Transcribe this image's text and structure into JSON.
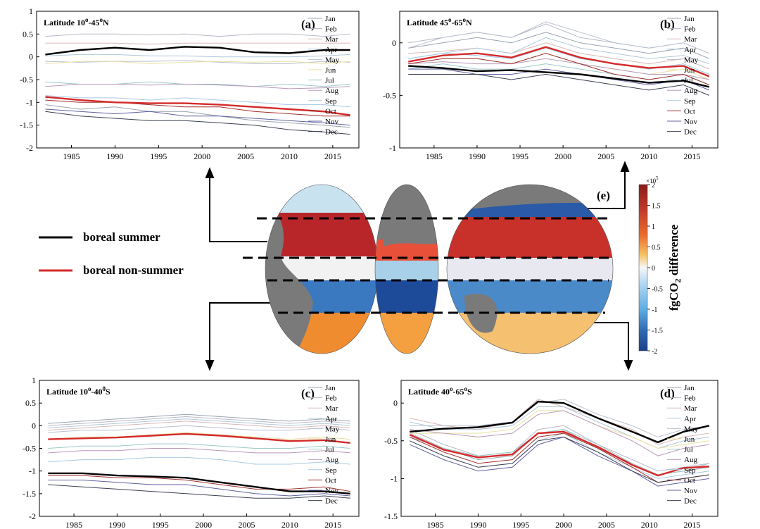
{
  "figure": {
    "legend": {
      "summer_label": "boreal summer",
      "nonsummer_label": "boreal non-summer",
      "summer_color": "#000000",
      "nonsummer_color": "#d42a2a"
    },
    "month_colors": [
      "#9aa3b0",
      "#b8b8c8",
      "#d8b8b8",
      "#b0c8d8",
      "#b8c0d0",
      "#e8e0a0",
      "#9cc8c8",
      "#b89ab8",
      "#a8c8e0",
      "#a03030",
      "#6060a0",
      "#3a4050"
    ],
    "map": {
      "label": "(e)",
      "colorbar": {
        "title_main": "fgCO",
        "title_sub": "2",
        "title_rest": " difference",
        "exponent_base": "×10",
        "exponent_power": "5",
        "ticks": [
          "2",
          "1.5",
          "1",
          "0.5",
          "0",
          "-0.5",
          "-1",
          "-1.5",
          "-2"
        ],
        "colors": [
          "#8b1a1a",
          "#c0392b",
          "#e74c3c",
          "#f39c12",
          "#f5d76e",
          "#f7f7f7",
          "#aed6f1",
          "#5dade2",
          "#2e86c1",
          "#1a3f8b"
        ]
      }
    }
  },
  "chart_data": [
    {
      "type": "line",
      "label": "(a)",
      "title": "Latitude 10°-45°N",
      "title_parts": {
        "pre": "Latitude 10",
        "sup1": "o",
        "mid": "-45",
        "sup2": "o",
        "post": "N"
      },
      "xlim": [
        1981,
        2018
      ],
      "ylim": [
        -2,
        1
      ],
      "xticks": [
        1985,
        1990,
        1995,
        2000,
        2005,
        2010,
        2015
      ],
      "yticks": [
        1,
        0.5,
        0,
        -0.5,
        -1,
        -1.5,
        -2
      ],
      "ytick_labels": [
        "1",
        "0.5",
        "0",
        "-0.5",
        "-1",
        "-1.5",
        "-2"
      ],
      "x": [
        1982,
        1986,
        1990,
        1994,
        1998,
        2002,
        2006,
        2010,
        2014,
        2017
      ],
      "legend": [
        "Jan",
        "Feb",
        "Mar",
        "Apr",
        "May",
        "Jun",
        "Jul",
        "Aug",
        "Sep",
        "Oct",
        "Nov",
        "Dec"
      ],
      "months": [
        [
          -1.05,
          -1.15,
          -1.1,
          -1.2,
          -1.2,
          -1.3,
          -1.4,
          -1.45,
          -1.5,
          -1.55
        ],
        [
          0.45,
          0.5,
          0.5,
          0.48,
          0.5,
          0.45,
          0.5,
          0.5,
          0.45,
          0.5
        ],
        [
          0.3,
          0.3,
          0.3,
          0.28,
          0.3,
          0.3,
          0.3,
          0.3,
          0.3,
          0.3
        ],
        [
          0.02,
          0.05,
          0.05,
          0.02,
          0.02,
          0.0,
          0.0,
          0.0,
          0.02,
          0.05
        ],
        [
          -0.1,
          -0.12,
          -0.1,
          -0.1,
          -0.08,
          -0.12,
          -0.15,
          -0.15,
          -0.1,
          -0.12
        ],
        [
          -0.15,
          -0.1,
          -0.1,
          -0.15,
          -0.12,
          -0.1,
          -0.12,
          -0.1,
          -0.15,
          -0.1
        ],
        [
          -0.55,
          -0.6,
          -0.6,
          -0.55,
          -0.6,
          -0.6,
          -0.65,
          -0.6,
          -0.65,
          -0.6
        ],
        [
          -0.65,
          -0.6,
          -0.6,
          -0.62,
          -0.6,
          -0.62,
          -0.65,
          -0.7,
          -0.68,
          -0.65
        ],
        [
          -0.85,
          -0.9,
          -0.9,
          -0.95,
          -0.9,
          -0.95,
          -1.0,
          -1.05,
          -1.05,
          -1.1
        ],
        [
          -0.95,
          -1.0,
          -1.0,
          -1.05,
          -1.1,
          -1.1,
          -1.2,
          -1.25,
          -1.3,
          -1.3
        ],
        [
          -1.15,
          -1.2,
          -1.25,
          -1.2,
          -1.3,
          -1.3,
          -1.35,
          -1.4,
          -1.45,
          -1.5
        ],
        [
          -1.2,
          -1.3,
          -1.35,
          -1.4,
          -1.4,
          -1.45,
          -1.5,
          -1.6,
          -1.65,
          -1.7
        ]
      ],
      "summer": [
        0.05,
        0.15,
        0.2,
        0.15,
        0.22,
        0.2,
        0.1,
        0.08,
        0.15,
        0.15
      ],
      "nonsummer": [
        -0.88,
        -0.95,
        -1.0,
        -1.02,
        -1.02,
        -1.05,
        -1.1,
        -1.15,
        -1.2,
        -1.28
      ]
    },
    {
      "type": "line",
      "label": "(b)",
      "title": "Latitude 45°-65°N",
      "title_parts": {
        "pre": "Latitude 45",
        "sup1": "o",
        "mid": "-65",
        "sup2": "o",
        "post": "N"
      },
      "xlim": [
        1981,
        2018
      ],
      "ylim": [
        -1,
        0.3
      ],
      "xticks": [
        1985,
        1990,
        1995,
        2000,
        2005,
        2010,
        2015
      ],
      "yticks": [
        0,
        -0.5,
        -1
      ],
      "ytick_labels": [
        "0",
        "-0.5",
        "-1"
      ],
      "x": [
        1982,
        1986,
        1990,
        1994,
        1998,
        2002,
        2006,
        2010,
        2014,
        2017
      ],
      "legend": [
        "Jan",
        "Feb",
        "Mar",
        "Apr",
        "May",
        "Jun",
        "Jul",
        "Aug",
        "Sep",
        "Oct",
        "Nov",
        "Dec"
      ],
      "months": [
        [
          -0.05,
          0.0,
          0.05,
          0.0,
          0.1,
          0.0,
          -0.05,
          -0.1,
          -0.05,
          -0.15
        ],
        [
          0.0,
          0.05,
          0.1,
          0.05,
          0.18,
          0.05,
          0.0,
          -0.05,
          0.0,
          -0.1
        ],
        [
          -0.1,
          -0.08,
          -0.05,
          -0.1,
          0.0,
          -0.1,
          -0.15,
          -0.2,
          -0.15,
          -0.25
        ],
        [
          -0.15,
          -0.1,
          -0.05,
          -0.1,
          0.05,
          -0.05,
          -0.1,
          -0.15,
          -0.12,
          -0.2
        ],
        [
          -0.05,
          0.05,
          0.1,
          0.05,
          0.2,
          0.1,
          0.0,
          -0.05,
          0.0,
          -0.1
        ],
        [
          -0.2,
          -0.15,
          -0.15,
          -0.2,
          -0.1,
          -0.2,
          -0.25,
          -0.3,
          -0.25,
          -0.35
        ],
        [
          -0.25,
          -0.2,
          -0.25,
          -0.25,
          -0.2,
          -0.25,
          -0.3,
          -0.35,
          -0.3,
          -0.4
        ],
        [
          -0.2,
          -0.18,
          -0.2,
          -0.2,
          -0.15,
          -0.2,
          -0.25,
          -0.3,
          -0.3,
          -0.35
        ],
        [
          -0.15,
          -0.1,
          -0.12,
          -0.15,
          -0.05,
          -0.15,
          -0.2,
          -0.25,
          -0.2,
          -0.3
        ],
        [
          -0.2,
          -0.15,
          -0.15,
          -0.2,
          -0.1,
          -0.2,
          -0.3,
          -0.35,
          -0.3,
          -0.4
        ],
        [
          -0.25,
          -0.25,
          -0.3,
          -0.3,
          -0.25,
          -0.3,
          -0.35,
          -0.4,
          -0.35,
          -0.45
        ],
        [
          -0.3,
          -0.3,
          -0.3,
          -0.35,
          -0.3,
          -0.35,
          -0.4,
          -0.45,
          -0.4,
          -0.5
        ]
      ],
      "summer": [
        -0.22,
        -0.24,
        -0.27,
        -0.26,
        -0.28,
        -0.3,
        -0.34,
        -0.38,
        -0.36,
        -0.42
      ],
      "nonsummer": [
        -0.18,
        -0.12,
        -0.1,
        -0.14,
        -0.04,
        -0.14,
        -0.2,
        -0.24,
        -0.22,
        -0.32
      ]
    },
    {
      "type": "line",
      "label": "(c)",
      "title": "Latitude 10°-40°S",
      "title_parts": {
        "pre": "Latitude 10",
        "sup1": "o",
        "mid": "-40",
        "sup2": "0",
        "post": "S"
      },
      "xlim": [
        1981,
        2018
      ],
      "ylim": [
        -2,
        1
      ],
      "xticks": [
        1985,
        1990,
        1995,
        2000,
        2005,
        2010,
        2015
      ],
      "yticks": [
        1,
        0.5,
        0,
        -0.5,
        -1,
        -1.5,
        -2
      ],
      "ytick_labels": [
        "1",
        "0.5",
        "0",
        "-0.5",
        "-1",
        "-1.5",
        "-2"
      ],
      "x": [
        1982,
        1986,
        1990,
        1994,
        1998,
        2002,
        2006,
        2010,
        2014,
        2017
      ],
      "legend": [
        "Jan",
        "Feb",
        "Mar",
        "Apr",
        "May",
        "Jun",
        "Jul",
        "Aug",
        "Sep",
        "Oct",
        "Nov",
        "Dec"
      ],
      "months": [
        [
          0.05,
          0.1,
          0.15,
          0.2,
          0.25,
          0.2,
          0.15,
          0.1,
          0.15,
          0.1
        ],
        [
          0.0,
          0.05,
          0.1,
          0.15,
          0.2,
          0.15,
          0.1,
          0.05,
          0.1,
          0.05
        ],
        [
          -0.1,
          -0.05,
          0.0,
          0.05,
          0.1,
          0.05,
          0.0,
          -0.05,
          0.0,
          -0.05
        ],
        [
          -0.05,
          0.0,
          0.05,
          0.1,
          0.15,
          0.1,
          0.05,
          0.0,
          0.05,
          0.0
        ],
        [
          -0.15,
          -0.1,
          -0.1,
          -0.05,
          0.0,
          -0.05,
          -0.1,
          -0.1,
          -0.05,
          -0.1
        ],
        [
          -0.3,
          -0.25,
          -0.25,
          -0.2,
          -0.15,
          -0.2,
          -0.25,
          -0.3,
          -0.25,
          -0.3
        ],
        [
          -0.5,
          -0.45,
          -0.45,
          -0.4,
          -0.4,
          -0.45,
          -0.5,
          -0.5,
          -0.45,
          -0.5
        ],
        [
          -0.6,
          -0.55,
          -0.55,
          -0.5,
          -0.5,
          -0.55,
          -0.6,
          -0.6,
          -0.55,
          -0.6
        ],
        [
          -0.8,
          -0.75,
          -0.75,
          -0.7,
          -0.7,
          -0.75,
          -0.85,
          -0.85,
          -0.8,
          -0.85
        ],
        [
          -1.1,
          -1.1,
          -1.15,
          -1.15,
          -1.2,
          -1.3,
          -1.4,
          -1.4,
          -1.35,
          -1.45
        ],
        [
          -1.2,
          -1.2,
          -1.25,
          -1.3,
          -1.3,
          -1.4,
          -1.5,
          -1.55,
          -1.5,
          -1.55
        ],
        [
          -1.3,
          -1.35,
          -1.4,
          -1.45,
          -1.5,
          -1.55,
          -1.6,
          -1.6,
          -1.55,
          -1.6
        ]
      ],
      "summer": [
        -1.05,
        -1.05,
        -1.1,
        -1.12,
        -1.15,
        -1.25,
        -1.35,
        -1.45,
        -1.45,
        -1.5
      ],
      "nonsummer": [
        -0.3,
        -0.28,
        -0.26,
        -0.22,
        -0.18,
        -0.22,
        -0.28,
        -0.34,
        -0.32,
        -0.38
      ]
    },
    {
      "type": "line",
      "label": "(d)",
      "title": "Latitude 40°-65°S",
      "title_parts": {
        "pre": "Latitude 40",
        "sup1": "o",
        "mid": "-65",
        "sup2": "o",
        "post": "S"
      },
      "xlim": [
        1981,
        2018
      ],
      "ylim": [
        -1.5,
        0.3
      ],
      "xticks": [
        1985,
        1990,
        1995,
        2000,
        2005,
        2010,
        2015
      ],
      "yticks": [
        0,
        -0.5,
        -1,
        -1.5
      ],
      "ytick_labels": [
        "0",
        "-0.5",
        "-1",
        "-1.5"
      ],
      "x": [
        1982,
        1986,
        1990,
        1994,
        1997,
        2000,
        2004,
        2008,
        2011,
        2014,
        2017
      ],
      "legend": [
        "Jan",
        "Feb",
        "Mar",
        "Apr",
        "May",
        "Jun",
        "Jul",
        "Aug",
        "Sep",
        "Oct",
        "Nov",
        "Dec"
      ],
      "months": [
        [
          -0.4,
          -0.6,
          -0.75,
          -0.7,
          -0.4,
          -0.35,
          -0.6,
          -0.8,
          -0.95,
          -0.9,
          -0.85
        ],
        [
          -0.35,
          -0.55,
          -0.7,
          -0.65,
          -0.35,
          -0.3,
          -0.55,
          -0.75,
          -0.9,
          -0.85,
          -0.8
        ],
        [
          -0.2,
          -0.3,
          -0.35,
          -0.25,
          0.05,
          -0.05,
          -0.2,
          -0.35,
          -0.55,
          -0.45,
          -0.4
        ],
        [
          -0.25,
          -0.35,
          -0.35,
          -0.3,
          -0.05,
          -0.05,
          -0.25,
          -0.45,
          -0.6,
          -0.5,
          -0.45
        ],
        [
          -0.3,
          -0.3,
          -0.3,
          -0.25,
          0.0,
          0.05,
          -0.15,
          -0.3,
          -0.45,
          -0.35,
          -0.3
        ],
        [
          -0.4,
          -0.4,
          -0.4,
          -0.35,
          -0.1,
          -0.1,
          -0.3,
          -0.45,
          -0.6,
          -0.55,
          -0.5
        ],
        [
          -0.45,
          -0.6,
          -0.7,
          -0.65,
          -0.4,
          -0.35,
          -0.55,
          -0.8,
          -0.95,
          -0.9,
          -0.8
        ],
        [
          -0.35,
          -0.4,
          -0.45,
          -0.4,
          -0.15,
          -0.1,
          -0.3,
          -0.5,
          -0.7,
          -0.6,
          -0.55
        ],
        [
          -0.5,
          -0.7,
          -0.85,
          -0.8,
          -0.5,
          -0.4,
          -0.65,
          -0.85,
          -1.0,
          -0.95,
          -0.9
        ],
        [
          -0.45,
          -0.65,
          -0.8,
          -0.75,
          -0.45,
          -0.4,
          -0.6,
          -0.85,
          -1.05,
          -1.0,
          -0.95
        ],
        [
          -0.55,
          -0.75,
          -0.9,
          -0.85,
          -0.55,
          -0.45,
          -0.7,
          -0.9,
          -1.1,
          -1.05,
          -1.0
        ],
        [
          -0.5,
          -0.7,
          -0.85,
          -0.8,
          -0.5,
          -0.45,
          -0.65,
          -0.9,
          -1.05,
          -1.0,
          -0.95
        ]
      ],
      "summer": [
        -0.38,
        -0.34,
        -0.32,
        -0.26,
        0.02,
        0.0,
        -0.2,
        -0.38,
        -0.52,
        -0.38,
        -0.3
      ],
      "nonsummer": [
        -0.42,
        -0.62,
        -0.72,
        -0.68,
        -0.4,
        -0.38,
        -0.58,
        -0.82,
        -0.96,
        -0.86,
        -0.84
      ]
    }
  ]
}
